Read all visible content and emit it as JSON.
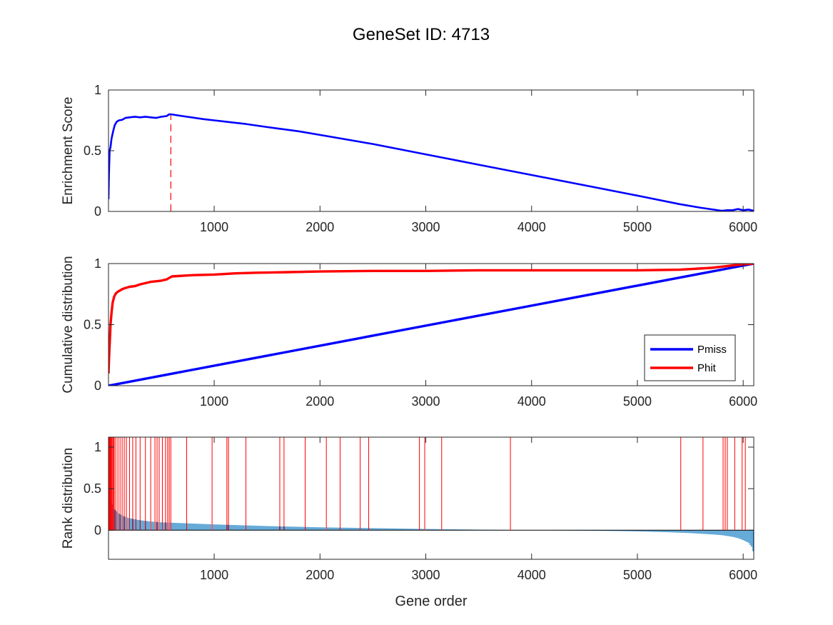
{
  "figure_title": "GeneSet ID: 4713",
  "colors": {
    "es_line": "#0000ff",
    "peak_marker": "#ff0000",
    "pmiss": "#0000ff",
    "phit": "#ff0000",
    "rank_bars": "#0072bd",
    "hit_lines": "#ff0000",
    "axes": "#262626"
  },
  "chart_data": [
    {
      "type": "line",
      "ylabel": "Enrichment Score",
      "xlim": [
        1,
        6100
      ],
      "ylim": [
        0,
        1
      ],
      "xticks": [
        1000,
        2000,
        3000,
        4000,
        5000,
        6000
      ],
      "yticks": [
        0,
        0.5,
        1
      ],
      "series": [
        {
          "x": [
            1,
            5,
            12,
            20,
            30,
            45,
            60,
            80,
            100,
            130,
            160,
            200,
            250,
            300,
            350,
            400,
            450,
            500,
            550,
            575,
            590,
            700,
            900,
            1000,
            1100,
            1150,
            1300,
            1500,
            1800,
            2000,
            2500,
            3000,
            3500,
            4000,
            4500,
            5000,
            5400,
            5600,
            5800,
            5850,
            5900,
            5950,
            6000,
            6050,
            6100
          ],
          "y": [
            0.1,
            0.3,
            0.5,
            0.53,
            0.6,
            0.66,
            0.71,
            0.74,
            0.75,
            0.755,
            0.77,
            0.775,
            0.78,
            0.775,
            0.78,
            0.775,
            0.77,
            0.78,
            0.785,
            0.8,
            0.8,
            0.785,
            0.76,
            0.75,
            0.74,
            0.735,
            0.72,
            0.695,
            0.66,
            0.63,
            0.555,
            0.47,
            0.385,
            0.3,
            0.215,
            0.13,
            0.06,
            0.03,
            0.005,
            0.01,
            0.01,
            0.02,
            0.01,
            0.015,
            0.005
          ]
        }
      ],
      "peak_x": 590,
      "peak_y": 0.8
    },
    {
      "type": "line",
      "ylabel": "Cumulative distribution",
      "xlim": [
        1,
        6100
      ],
      "ylim": [
        0,
        1
      ],
      "xticks": [
        1000,
        2000,
        3000,
        4000,
        5000,
        6000
      ],
      "yticks": [
        0,
        0.5,
        1
      ],
      "legend_position": "lower-right",
      "series": [
        {
          "name": "Pmiss",
          "x": [
            1,
            6100
          ],
          "y": [
            0,
            1
          ]
        },
        {
          "name": "Phit",
          "x": [
            1,
            5,
            10,
            15,
            20,
            30,
            40,
            55,
            70,
            90,
            110,
            130,
            160,
            200,
            250,
            300,
            350,
            400,
            450,
            500,
            550,
            580,
            600,
            700,
            800,
            1000,
            1200,
            1400,
            1700,
            2000,
            2500,
            3000,
            3500,
            4000,
            5000,
            5400,
            5700,
            5900,
            6000,
            6100
          ],
          "y": [
            0.1,
            0.2,
            0.3,
            0.4,
            0.5,
            0.6,
            0.68,
            0.73,
            0.755,
            0.77,
            0.78,
            0.79,
            0.8,
            0.81,
            0.815,
            0.83,
            0.84,
            0.85,
            0.855,
            0.86,
            0.87,
            0.885,
            0.895,
            0.9,
            0.905,
            0.91,
            0.92,
            0.925,
            0.93,
            0.935,
            0.94,
            0.94,
            0.945,
            0.945,
            0.945,
            0.95,
            0.965,
            0.985,
            0.995,
            1.0
          ]
        }
      ]
    },
    {
      "type": "bar",
      "ylabel": "Rank distribution",
      "xlabel": "Gene order",
      "xlim": [
        1,
        6100
      ],
      "ylim": [
        -0.35,
        1.12
      ],
      "xticks": [
        1000,
        2000,
        3000,
        4000,
        5000,
        6000
      ],
      "yticks": [
        0,
        0.5,
        1
      ],
      "rank_curve": {
        "x": [
          1,
          20,
          50,
          100,
          150,
          200,
          300,
          400,
          500,
          700,
          1000,
          1500,
          2000,
          2500,
          3000,
          3500,
          4000,
          4500,
          4800,
          5000,
          5300,
          5500,
          5700,
          5800,
          5900,
          5950,
          6000,
          6050,
          6080,
          6100
        ],
        "y": [
          0.5,
          0.36,
          0.26,
          0.2,
          0.165,
          0.145,
          0.12,
          0.105,
          0.095,
          0.085,
          0.07,
          0.05,
          0.035,
          0.025,
          0.015,
          0.007,
          0.0,
          -0.006,
          -0.01,
          -0.015,
          -0.025,
          -0.035,
          -0.05,
          -0.06,
          -0.08,
          -0.095,
          -0.12,
          -0.15,
          -0.2,
          -0.28
        ]
      },
      "hit_positions": [
        3,
        8,
        12,
        18,
        25,
        32,
        40,
        48,
        55,
        70,
        90,
        110,
        130,
        150,
        170,
        200,
        230,
        260,
        300,
        350,
        400,
        440,
        460,
        480,
        510,
        540,
        560,
        575,
        590,
        740,
        980,
        1120,
        1135,
        1300,
        1620,
        1660,
        1860,
        2060,
        2190,
        2380,
        2460,
        2940,
        2990,
        3150,
        3800,
        5410,
        5620,
        5810,
        5830,
        5850,
        5920,
        5990,
        6020
      ]
    }
  ]
}
